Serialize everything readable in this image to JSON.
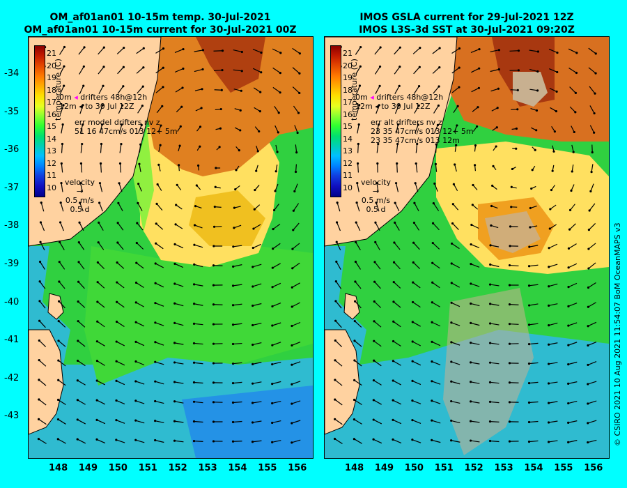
{
  "left_panel": {
    "title_line1": "OM_af01an01 10-15m temp. 30-Jul-2021",
    "title_line2": "OM_af01an01 10-15m current for 30-Jul-2021 00Z",
    "legend_drifters": "drifters 48h@12h",
    "legend_depth_top": "0m",
    "legend_depth_bottom": "12m",
    "legend_to": "to 30 Jul 12Z",
    "err_line1": "err model drifters nv z",
    "err_line2": "51 16 47cm/s 013 12+ 5m",
    "velocity_label": "velocity",
    "velocity_speed": "0.5 m/s",
    "velocity_time": "0.5 d"
  },
  "right_panel": {
    "title_line1": "IMOS GSLA current for 29-Jul-2021 12Z",
    "title_line2": "IMOS L3S-3d SST at 30-Jul-2021 09:20Z",
    "legend_drifters": "drifters 48h@12h",
    "legend_depth_top": "0m",
    "legend_depth_bottom": "12m",
    "legend_to": "to 30 Jul 12Z",
    "err_line1": "err alt drifters nv z",
    "err_line2": "23 35 47cm/s 013 12+ 5m",
    "err_line3": "23 35 47cm/s 013 12m",
    "velocity_label": "velocity",
    "velocity_speed": "0.5 m/s",
    "velocity_time": "0.5 d"
  },
  "colorbar": {
    "label": "temperature (C)",
    "ticks": [
      "21",
      "20",
      "19",
      "18",
      "17",
      "16",
      "15",
      "14",
      "13",
      "12",
      "11",
      "10"
    ],
    "tick_values": [
      21,
      20,
      19,
      18,
      17,
      16,
      15,
      14,
      13,
      12,
      11,
      10
    ]
  },
  "latitude_labels": [
    "-34",
    "-35",
    "-36",
    "-37",
    "-38",
    "-39",
    "-40",
    "-41",
    "-42",
    "-43"
  ],
  "longitude_labels": [
    "148",
    "149",
    "150",
    "151",
    "152",
    "153",
    "154",
    "155",
    "156"
  ],
  "credit": "© CSIRO 2021  10 Aug 2021 11:54:07 BoM OceanMAPS v3",
  "colors": {
    "background": "#00ffff",
    "land": "#ffd2a0",
    "warm_core": "#d87020",
    "warm_ring": "#ffe060",
    "mid_water": "#30d040",
    "cool_water": "#30b0e0",
    "cloud_mask": "#c8b090"
  }
}
